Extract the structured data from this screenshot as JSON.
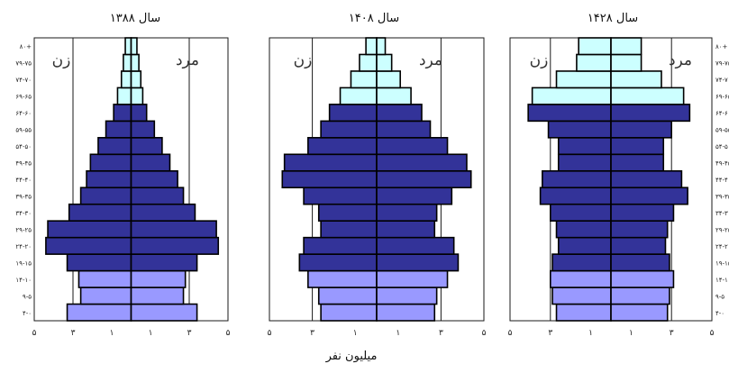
{
  "figure": {
    "xlabel": "میلیون نفر"
  },
  "chart_data": [
    {
      "type": "bar",
      "title": "سال ۱۳۸۸",
      "xlabel": "میلیون نفر",
      "left_label": "زن",
      "right_label": "مرد",
      "categories": [
        "۰-۴",
        "۵-۹",
        "۱۰-۱۴",
        "۱۵-۱۹",
        "۲۰-۲۴",
        "۲۵-۲۹",
        "۳۰-۳۴",
        "۳۵-۳۹",
        "۴۰-۴۴",
        "۴۵-۴۹",
        "۵۰-۵۴",
        "۵۵-۵۹",
        "۶۰-۶۴",
        "۶۵-۶۹",
        "۷۰-۷۴",
        "۷۵-۷۹",
        "۸۰+"
      ],
      "category_labels": [
        "۴-۰",
        "۹-۵",
        "۱۴-۱۰",
        "۱۹-۱۵",
        "۲۴-۲۰",
        "۲۹-۲۵",
        "۳۴-۳۰",
        "۳۹-۳۵",
        "۴۴-۴۰",
        "۴۹-۴۵",
        "۵۴-۵۰",
        "۵۹-۵۵",
        "۶۴-۶۰",
        "۶۹-۶۵",
        "۷۴-۷۰",
        "۷۹-۷۵",
        "۸۰+"
      ],
      "series": [
        {
          "name": "زن",
          "values": [
            3.3,
            2.6,
            2.7,
            3.3,
            4.4,
            4.3,
            3.2,
            2.6,
            2.3,
            2.1,
            1.7,
            1.3,
            0.9,
            0.7,
            0.5,
            0.4,
            0.3
          ]
        },
        {
          "name": "مرد",
          "values": [
            3.4,
            2.7,
            2.8,
            3.4,
            4.5,
            4.4,
            3.3,
            2.7,
            2.4,
            2.0,
            1.6,
            1.2,
            0.8,
            0.6,
            0.5,
            0.4,
            0.3
          ]
        }
      ],
      "xticks": [
        "۵",
        "۳",
        "۱",
        "۱",
        "۳",
        "۵"
      ],
      "xlim": [
        -5,
        5
      ]
    },
    {
      "type": "bar",
      "title": "سال ۱۴۰۸",
      "left_label": "زن",
      "right_label": "مرد",
      "categories": [
        "۰-۴",
        "۵-۹",
        "۱۰-۱۴",
        "۱۵-۱۹",
        "۲۰-۲۴",
        "۲۵-۲۹",
        "۳۰-۳۴",
        "۳۵-۳۹",
        "۴۰-۴۴",
        "۴۵-۴۹",
        "۵۰-۵۴",
        "۵۵-۵۹",
        "۶۰-۶۴",
        "۶۵-۶۹",
        "۷۰-۷۴",
        "۷۵-۷۹",
        "۸۰+"
      ],
      "series": [
        {
          "name": "زن",
          "values": [
            2.6,
            2.7,
            3.2,
            3.6,
            3.4,
            2.6,
            2.7,
            3.4,
            4.4,
            4.3,
            3.2,
            2.6,
            2.2,
            1.7,
            1.2,
            0.8,
            0.5
          ]
        },
        {
          "name": "مرد",
          "values": [
            2.7,
            2.8,
            3.3,
            3.8,
            3.6,
            2.7,
            2.8,
            3.5,
            4.4,
            4.2,
            3.3,
            2.5,
            2.1,
            1.6,
            1.1,
            0.7,
            0.4
          ]
        }
      ],
      "xticks": [
        "۵",
        "۳",
        "۱",
        "۱",
        "۳",
        "۵"
      ],
      "xlim": [
        -5,
        5
      ]
    },
    {
      "type": "bar",
      "title": "سال ۱۴۲۸",
      "left_label": "زن",
      "right_label": "مرد",
      "categories": [
        "۰-۴",
        "۵-۹",
        "۱۰-۱۴",
        "۱۵-۱۹",
        "۲۰-۲۴",
        "۲۵-۲۹",
        "۳۰-۳۴",
        "۳۵-۳۹",
        "۴۰-۴۴",
        "۴۵-۴۹",
        "۵۰-۵۴",
        "۵۵-۵۹",
        "۶۰-۶۴",
        "۶۵-۶۹",
        "۷۰-۷۴",
        "۷۵-۷۹",
        "۸۰+"
      ],
      "category_labels": [
        "۴-۰",
        "۹-۵",
        "۱۴-۱۰",
        "۱۹-۱۵",
        "۲۴-۲۰",
        "۲۹-۲۵",
        "۳۴-۳۰",
        "۳۹-۳۵",
        "۴۴-۴۰",
        "۴۹-۴۵",
        "۵۴-۵۰",
        "۵۹-۵۵",
        "۶۴-۶۰",
        "۶۹-۶۵",
        "۷۴-۷۰",
        "۷۹-۷۵",
        "۸۰+"
      ],
      "series": [
        {
          "name": "زن",
          "values": [
            2.7,
            2.9,
            3.0,
            2.9,
            2.6,
            2.7,
            3.0,
            3.5,
            3.4,
            2.6,
            2.6,
            3.1,
            4.1,
            3.9,
            2.7,
            1.7,
            1.6
          ]
        },
        {
          "name": "مرد",
          "values": [
            2.8,
            2.9,
            3.1,
            2.9,
            2.7,
            2.8,
            3.1,
            3.8,
            3.5,
            2.6,
            2.6,
            3.0,
            3.9,
            3.6,
            2.5,
            1.5,
            1.5
          ]
        }
      ],
      "xticks": [
        "۵",
        "۳",
        "۱",
        "۱",
        "۳",
        "۵"
      ],
      "xlim": [
        -5,
        5
      ]
    }
  ],
  "colors": {
    "frame": "#1a1a1a",
    "old_age": "#ccffff",
    "working_age": "#333399",
    "young": "#9999ff"
  }
}
